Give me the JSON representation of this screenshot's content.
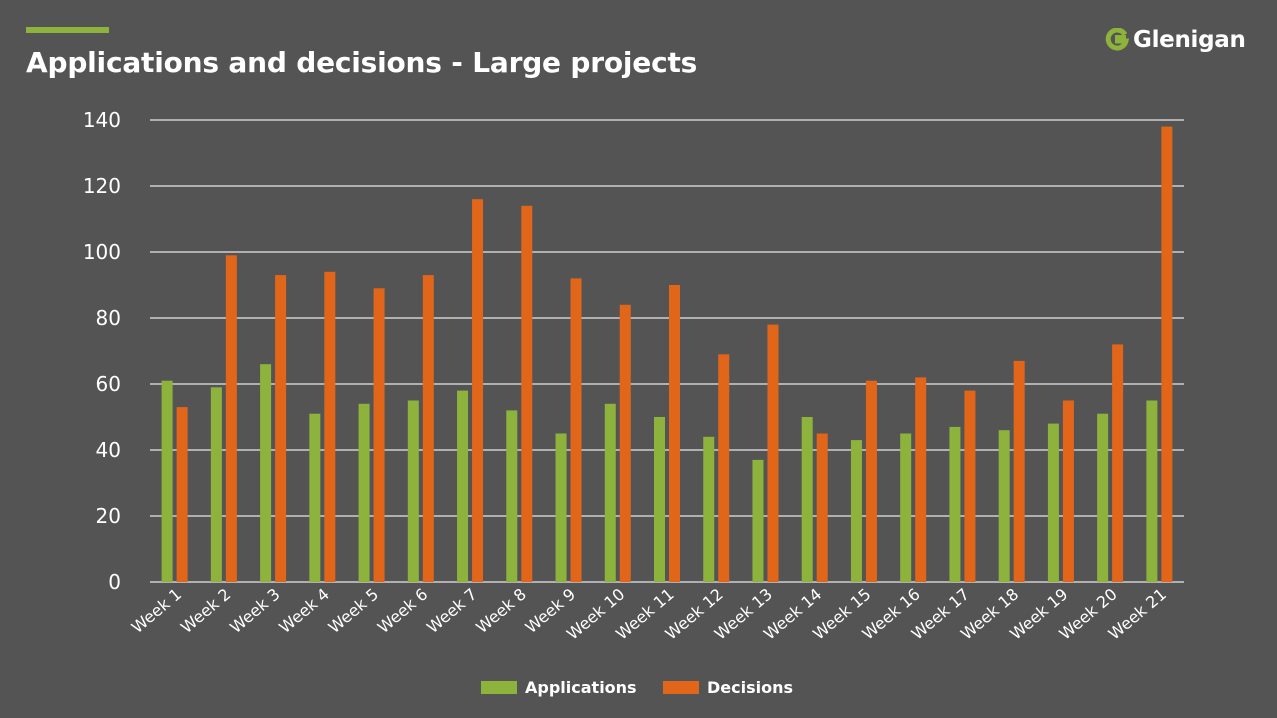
{
  "header": {
    "title": "Applications and decisions - Large projects",
    "logo_text": "Glenigan"
  },
  "colors": {
    "background": "#545454",
    "applications": "#8DB33C",
    "decisions": "#E2661A",
    "grid": "#E8E8E8",
    "text": "#FFFFFF"
  },
  "chart_data": {
    "type": "bar",
    "title": "Applications and decisions - Large projects",
    "categories": [
      "Week 1",
      "Week 2",
      "Week 3",
      "Week 4",
      "Week 5",
      "Week 6",
      "Week 7",
      "Week 8",
      "Week 9",
      "Week 10",
      "Week 11",
      "Week 12",
      "Week 13",
      "Week 14",
      "Week 15",
      "Week 16",
      "Week 17",
      "Week 18",
      "Week 19",
      "Week 20",
      "Week 21"
    ],
    "series": [
      {
        "name": "Applications",
        "color": "#8DB33C",
        "values": [
          61,
          59,
          66,
          51,
          54,
          55,
          58,
          52,
          45,
          54,
          50,
          44,
          37,
          50,
          43,
          45,
          47,
          46,
          48,
          51,
          55
        ]
      },
      {
        "name": "Decisions",
        "color": "#E2661A",
        "values": [
          53,
          99,
          93,
          94,
          89,
          93,
          116,
          114,
          92,
          84,
          90,
          69,
          78,
          45,
          61,
          62,
          58,
          67,
          55,
          72,
          138
        ]
      }
    ],
    "ylim": [
      0,
      140
    ],
    "yticks": [
      0,
      20,
      40,
      60,
      80,
      100,
      120,
      140
    ],
    "grid": true,
    "legend": "bottom",
    "xlabel": "",
    "ylabel": ""
  }
}
